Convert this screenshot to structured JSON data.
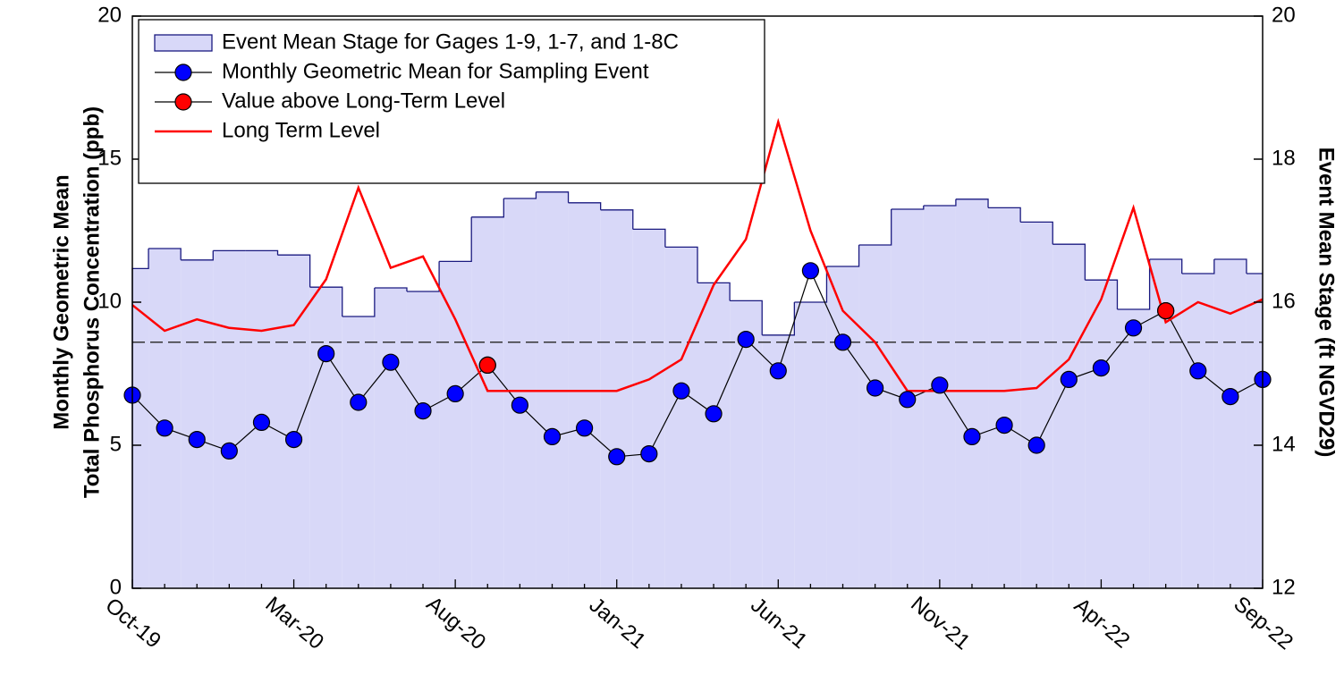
{
  "chart_data": {
    "type": "combo",
    "axis_titles": {
      "y": [
        "Monthly Geometric Mean",
        "Total Phosphorus Concentration (ppb)"
      ],
      "y2": "Event Mean Stage (ft NGVD29)"
    },
    "categories": [
      "Oct-19",
      null,
      null,
      null,
      null,
      "Mar-20",
      null,
      null,
      null,
      null,
      "Aug-20",
      null,
      null,
      null,
      null,
      "Jan-21",
      null,
      null,
      null,
      null,
      "Jun-21",
      null,
      null,
      null,
      null,
      "Nov-21",
      null,
      null,
      null,
      null,
      "Apr-22",
      null,
      null,
      null,
      null,
      "Sep-22"
    ],
    "ylim": [
      0,
      20
    ],
    "yticks": [
      0,
      5,
      10,
      15,
      20
    ],
    "y2lim": [
      12,
      20
    ],
    "y2ticks": [
      12,
      14,
      16,
      18,
      20
    ],
    "reference_lines": [
      {
        "value": 8.6,
        "style": "dashed",
        "color": "#333333"
      }
    ],
    "legend": "top-left",
    "series": [
      {
        "name": "Event Mean Stage for Gages 1-9, 1-7, and 1-8C",
        "kind": "step-area",
        "axis": "y2",
        "color": "#d8d8f8",
        "edge_color": "#1a1a80",
        "values": [
          16.47,
          16.75,
          16.59,
          16.72,
          16.72,
          16.66,
          16.21,
          15.8,
          16.2,
          16.15,
          16.57,
          17.19,
          17.45,
          17.54,
          17.39,
          17.29,
          17.02,
          16.77,
          16.27,
          16.02,
          15.54,
          16.0,
          16.5,
          16.8,
          17.3,
          17.35,
          17.44,
          17.32,
          17.12,
          16.81,
          16.31,
          15.9,
          16.6,
          16.4,
          16.6,
          16.4
        ]
      },
      {
        "name": "Monthly Geometric Mean for Sampling Event",
        "kind": "line-marker",
        "color": "#0000ff",
        "line_color": "#000000",
        "values": [
          6.75,
          5.6,
          5.2,
          4.8,
          5.8,
          5.2,
          8.2,
          6.5,
          7.9,
          6.2,
          6.8,
          7.8,
          6.4,
          5.3,
          5.6,
          4.6,
          4.7,
          6.9,
          6.1,
          8.7,
          7.6,
          11.1,
          8.6,
          7.0,
          6.6,
          7.1,
          5.3,
          5.7,
          5.0,
          7.3,
          7.7,
          9.1,
          9.7,
          7.6,
          6.7,
          7.3
        ]
      },
      {
        "name": "Value above Long-Term Level",
        "kind": "marker",
        "color": "#ff0000",
        "values": [
          null,
          null,
          null,
          null,
          null,
          null,
          null,
          null,
          null,
          null,
          null,
          7.8,
          null,
          null,
          null,
          null,
          null,
          null,
          null,
          null,
          null,
          null,
          null,
          null,
          null,
          null,
          null,
          null,
          null,
          null,
          null,
          null,
          9.7,
          null,
          null,
          null
        ]
      },
      {
        "name": "Long Term Level",
        "kind": "line",
        "color": "#ff0000",
        "values": [
          9.9,
          9.0,
          9.4,
          9.1,
          9.0,
          9.2,
          10.8,
          14.0,
          11.2,
          11.6,
          9.4,
          6.9,
          6.9,
          6.9,
          6.9,
          6.9,
          7.3,
          8.0,
          10.6,
          12.2,
          16.3,
          12.5,
          9.7,
          8.6,
          6.9,
          6.9,
          6.9,
          6.9,
          7.0,
          8.0,
          10.1,
          13.3,
          9.3,
          10.0,
          9.6,
          10.1
        ]
      }
    ]
  }
}
